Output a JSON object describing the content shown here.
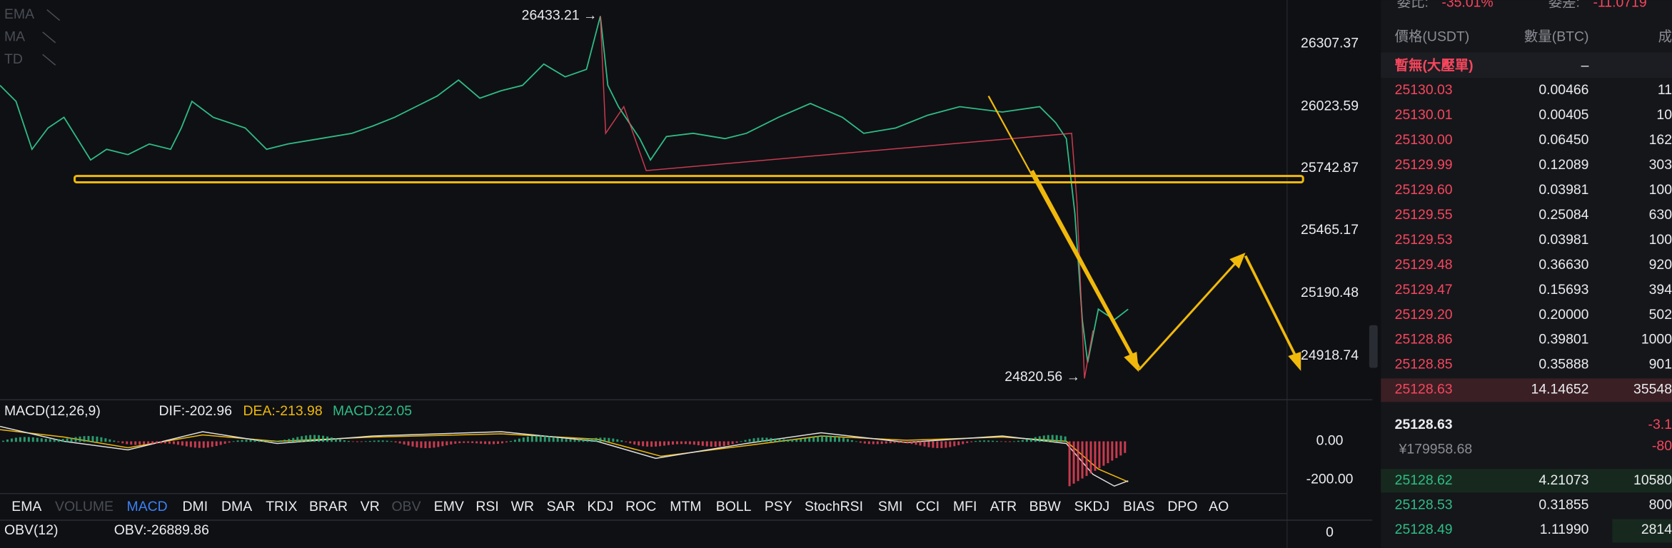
{
  "chart_header": {
    "overlays": [
      "EMA",
      "MA",
      "TD"
    ]
  },
  "price_axis": [
    "26307.37",
    "26023.59",
    "25742.87",
    "25465.17",
    "25190.48",
    "24918.74"
  ],
  "annotations": {
    "high": "26433.21 →",
    "low": "24820.56 →"
  },
  "macd": {
    "label": "MACD(12,26,9)",
    "dif": "DIF:-202.96",
    "dea": "DEA:-213.98",
    "macd": "MACD:22.05",
    "axis": [
      "0.00",
      "-200.00"
    ]
  },
  "indicator_tabs": [
    "EMA",
    "VOLUME",
    "MACD",
    "DMI",
    "DMA",
    "TRIX",
    "BRAR",
    "VR",
    "OBV",
    "EMV",
    "RSI",
    "WR",
    "SAR",
    "KDJ",
    "ROC",
    "MTM",
    "BOLL",
    "PSY",
    "StochRSI",
    "SMI",
    "CCI",
    "MFI",
    "ATR",
    "BBW",
    "SKDJ",
    "BIAS",
    "DPO",
    "AO"
  ],
  "obv": {
    "label": "OBV(12)",
    "value": "OBV:-26889.86",
    "axis": [
      "0"
    ]
  },
  "order_book": {
    "ratio_label": "委比:",
    "ratio": "-35.01%",
    "diff_label": "委差:",
    "diff": "-11.0719",
    "headers": [
      "價格(USDT)",
      "數量(BTC)",
      "成"
    ],
    "large_order": "暫無(大壓單)",
    "large_order_value": "–",
    "asks": [
      [
        "25130.03",
        "0.00466",
        "11"
      ],
      [
        "25130.01",
        "0.00405",
        "10"
      ],
      [
        "25130.00",
        "0.06450",
        "162"
      ],
      [
        "25129.99",
        "0.12089",
        "303"
      ],
      [
        "25129.60",
        "0.03981",
        "100"
      ],
      [
        "25129.55",
        "0.25084",
        "630"
      ],
      [
        "25129.53",
        "0.03981",
        "100"
      ],
      [
        "25129.48",
        "0.36630",
        "920"
      ],
      [
        "25129.47",
        "0.15693",
        "394"
      ],
      [
        "25129.20",
        "0.20000",
        "502"
      ],
      [
        "25128.86",
        "0.39801",
        "1000"
      ],
      [
        "25128.85",
        "0.35888",
        "901"
      ],
      [
        "25128.63",
        "14.14652",
        "35548"
      ]
    ],
    "last_price": "25128.63",
    "last_price_cny": "¥179958.68",
    "change": "-3.1",
    "change_pct": "-80",
    "bids": [
      [
        "25128.62",
        "4.21073",
        "10580"
      ],
      [
        "25128.53",
        "0.31855",
        "800"
      ],
      [
        "25128.49",
        "1.11990",
        "2814"
      ]
    ]
  }
}
